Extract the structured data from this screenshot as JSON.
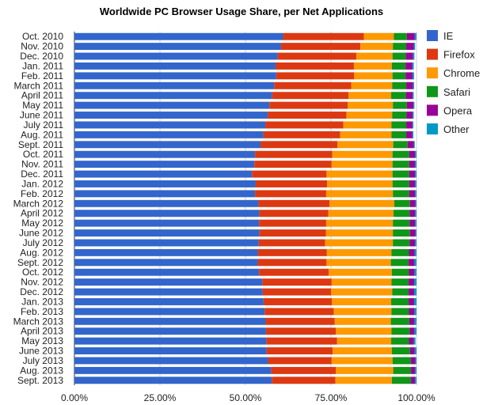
{
  "chart_data": {
    "type": "bar",
    "stacked": true,
    "orientation": "horizontal",
    "title": "Worldwide PC Browser Usage Share, per Net Applications",
    "xlabel": "",
    "ylabel": "",
    "xlim": [
      0,
      100
    ],
    "x_ticks": [
      "0.00%",
      "25.00%",
      "50.00%",
      "75.00%",
      "100.00%"
    ],
    "grid": true,
    "legend_position": "right",
    "categories": [
      "Oct. 2010",
      "Nov. 2010",
      "Dec. 2010",
      "Jan. 2011",
      "Feb. 2011",
      "March 2011",
      "April 2011",
      "May 2011",
      "June 2011",
      "July 2011",
      "Aug. 2011",
      "Sept. 2011",
      "Oct. 2011",
      "Nov. 2011",
      "Dec. 2011",
      "Jan. 2012",
      "Feb. 2012",
      "March 2012",
      "April 2012",
      "May 2012",
      "June 2012",
      "July 2012",
      "Aug. 2012",
      "Sept. 2012",
      "Oct. 2012",
      "Nov. 2012",
      "Dec. 2012",
      "Jan. 2013",
      "Feb. 2013",
      "March 2013",
      "April 2013",
      "May 2013",
      "June 2013",
      "July 2013",
      "Aug. 2013",
      "Sept. 2013"
    ],
    "series": [
      {
        "name": "IE",
        "color": "#3366cc",
        "values": [
          61.0,
          60.4,
          59.4,
          58.8,
          59.0,
          58.4,
          57.8,
          57.0,
          56.5,
          55.8,
          55.3,
          54.4,
          52.8,
          52.6,
          51.9,
          53.0,
          52.8,
          53.8,
          54.1,
          54.0,
          54.1,
          53.9,
          53.6,
          53.6,
          54.0,
          54.9,
          55.0,
          55.3,
          55.6,
          55.9,
          56.0,
          56.1,
          56.2,
          56.6,
          57.5,
          57.7
        ]
      },
      {
        "name": "Firefox",
        "color": "#dc3912",
        "values": [
          23.6,
          23.2,
          23.0,
          22.9,
          22.8,
          22.5,
          22.3,
          22.9,
          23.0,
          22.8,
          22.4,
          22.5,
          22.6,
          22.6,
          21.8,
          20.9,
          20.8,
          20.8,
          20.1,
          19.6,
          19.4,
          19.4,
          20.2,
          20.1,
          20.3,
          20.3,
          20.0,
          20.0,
          20.2,
          20.2,
          20.4,
          20.7,
          19.3,
          18.6,
          18.9,
          18.6
        ]
      },
      {
        "name": "Chrome",
        "color": "#ff9900",
        "values": [
          8.8,
          9.5,
          10.6,
          11.1,
          11.2,
          12.0,
          12.5,
          13.2,
          13.4,
          14.1,
          15.0,
          16.3,
          17.6,
          17.8,
          19.3,
          19.1,
          19.5,
          18.9,
          19.1,
          19.5,
          19.6,
          19.8,
          18.9,
          18.8,
          18.5,
          17.5,
          17.9,
          17.3,
          16.9,
          16.4,
          16.3,
          15.8,
          17.3,
          17.8,
          16.8,
          16.5
        ]
      },
      {
        "name": "Safari",
        "color": "#109618",
        "values": [
          3.8,
          3.9,
          3.9,
          4.0,
          3.8,
          4.1,
          4.3,
          4.1,
          4.2,
          4.3,
          4.3,
          4.2,
          4.9,
          4.9,
          4.9,
          4.9,
          4.8,
          4.6,
          4.7,
          4.9,
          5.0,
          4.9,
          5.1,
          5.2,
          5.0,
          5.0,
          4.8,
          5.1,
          5.1,
          5.4,
          5.3,
          5.2,
          5.3,
          5.4,
          5.2,
          5.6
        ]
      },
      {
        "name": "Opera",
        "color": "#990099",
        "values": [
          2.3,
          2.2,
          2.1,
          2.0,
          2.1,
          2.0,
          2.0,
          1.9,
          1.8,
          1.8,
          1.8,
          1.8,
          1.7,
          1.7,
          1.7,
          1.7,
          1.7,
          1.6,
          1.6,
          1.6,
          1.6,
          1.6,
          1.7,
          1.7,
          1.6,
          1.6,
          1.6,
          1.6,
          1.6,
          1.5,
          1.4,
          1.4,
          1.4,
          1.3,
          1.2,
          1.2
        ]
      },
      {
        "name": "Other",
        "color": "#0099c6",
        "values": [
          0.5,
          0.4,
          0.4,
          0.4,
          0.4,
          0.3,
          0.3,
          0.3,
          0.3,
          0.3,
          0.3,
          0.3,
          0.4,
          0.4,
          0.4,
          0.4,
          0.4,
          0.3,
          0.4,
          0.4,
          0.3,
          0.4,
          0.5,
          0.6,
          0.6,
          0.7,
          0.7,
          0.7,
          0.6,
          0.6,
          0.6,
          0.5,
          0.5,
          0.3,
          0.4,
          0.4
        ]
      }
    ]
  }
}
